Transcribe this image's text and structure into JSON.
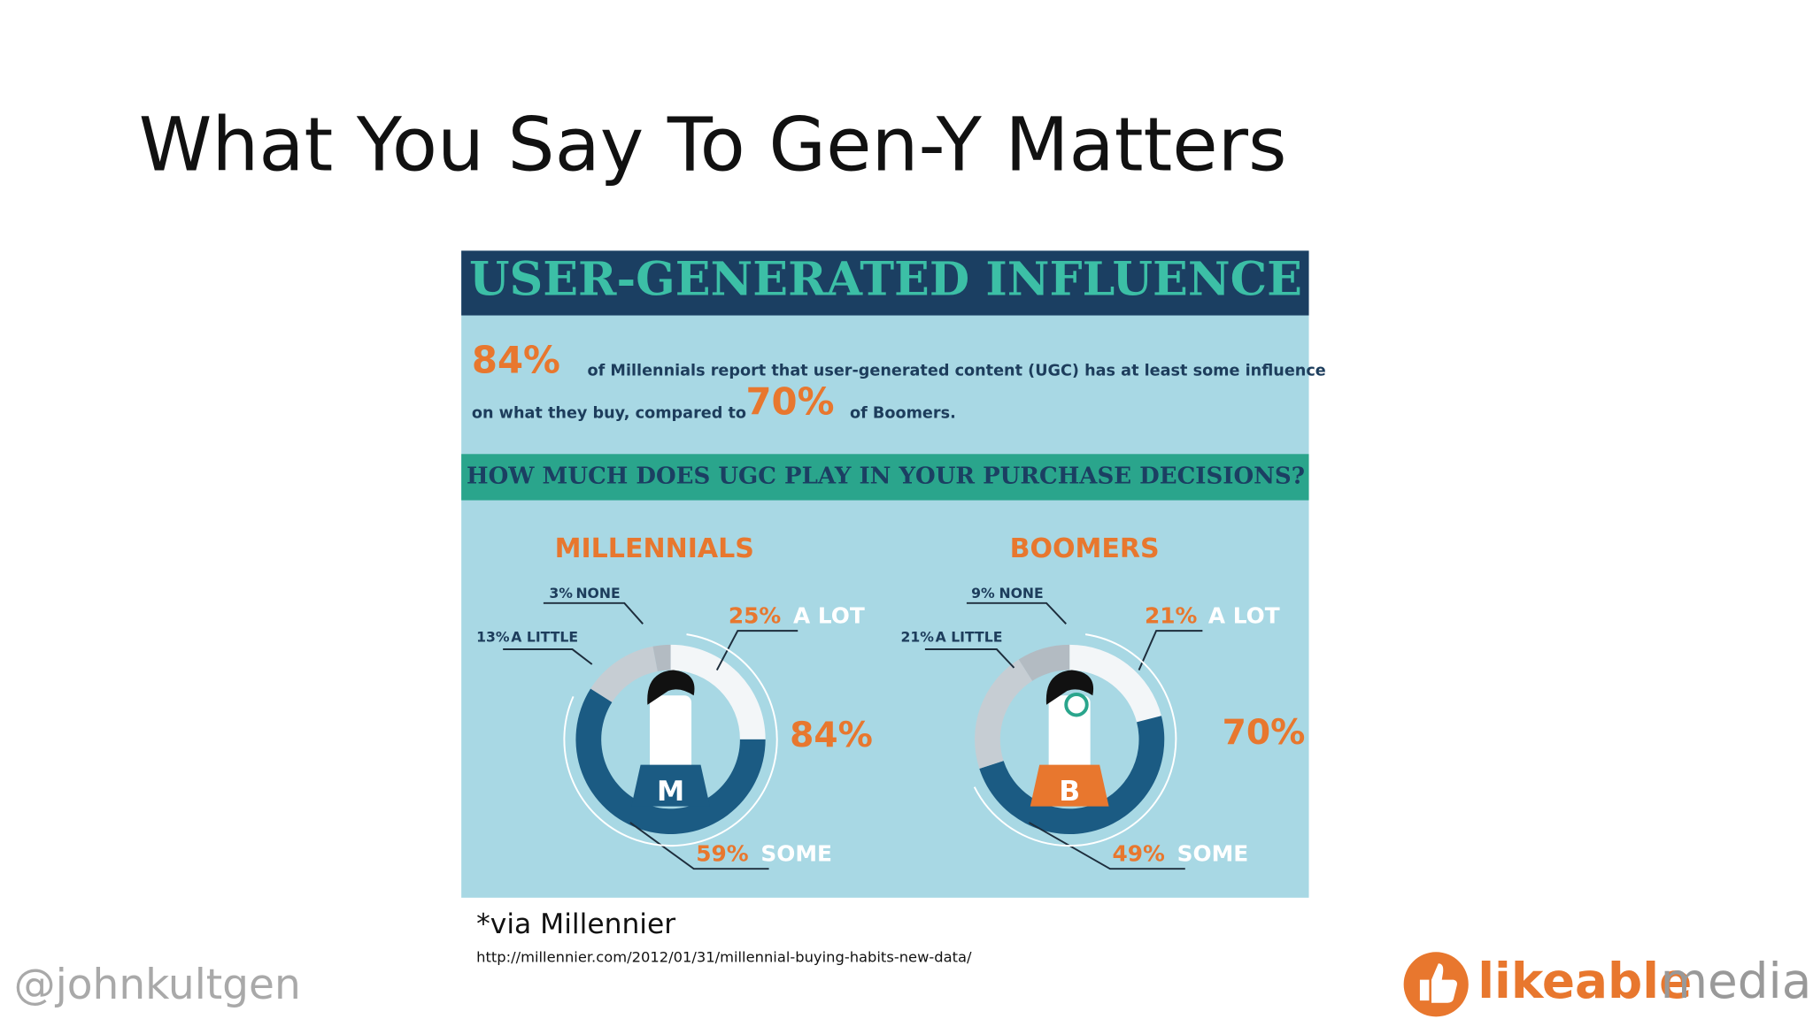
{
  "slide": {
    "title": "What You Say To Gen-Y Matters",
    "caption": "*via Millennier",
    "url": "http://millennier.com/2012/01/31/millennial-buying-habits-new-data/",
    "handle": "@johnkultgen",
    "logo_bold": "likeable",
    "logo_light": "media"
  },
  "infographic": {
    "title": "USER-GENERATED INFLUENCE",
    "intro_pct_1": "84%",
    "intro_text_1": "of Millennials report that user-generated content (UGC) has at least some influence",
    "intro_text_2": "on what they buy, compared to",
    "intro_pct_2": "70%",
    "intro_text_3": "of Boomers.",
    "question": "HOW MUCH DOES UGC PLAY IN YOUR PURCHASE DECISIONS?",
    "shirts": [
      "M",
      "B"
    ]
  },
  "chart_data": [
    {
      "type": "donut",
      "title": "MILLENNIALS",
      "categories": [
        "A LOT",
        "SOME",
        "A LITTLE",
        "NONE"
      ],
      "values": [
        25,
        59,
        13,
        3
      ],
      "value_labels": [
        "25%",
        "59%",
        "13%",
        "3%"
      ],
      "colors": [
        "#f3f6f8",
        "#1b5b83",
        "#c6cdd3",
        "#b3bbc2"
      ],
      "total": {
        "value": 84,
        "label": "84%"
      }
    },
    {
      "type": "donut",
      "title": "BOOMERS",
      "categories": [
        "A LOT",
        "SOME",
        "A LITTLE",
        "NONE"
      ],
      "values": [
        21,
        49,
        21,
        9
      ],
      "value_labels": [
        "21%",
        "49%",
        "21%",
        "9%"
      ],
      "colors": [
        "#f3f6f8",
        "#1b5b83",
        "#c6cdd3",
        "#b3bbc2"
      ],
      "total": {
        "value": 70,
        "label": "70%"
      }
    }
  ]
}
